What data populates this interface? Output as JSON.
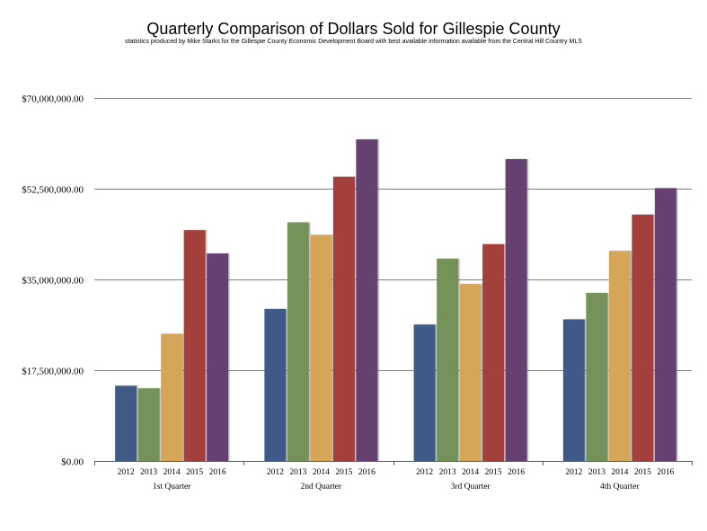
{
  "chart_data": {
    "type": "bar",
    "title": "Quarterly Comparison of Dollars Sold for Gillespie County",
    "subtitle": "statistics produced by Mike Starks for the Gillespie County Economic Development Board with best available information available from the Central Hill Country MLS",
    "categories": [
      "1st Quarter",
      "2nd Quarter",
      "3rd Quarter",
      "4th Quarter"
    ],
    "series_labels": [
      "2012",
      "2013",
      "2014",
      "2015",
      "2016"
    ],
    "series": [
      {
        "name": "2012",
        "color": "#3f5a87",
        "values": [
          14500000,
          29300000,
          26300000,
          27300000
        ]
      },
      {
        "name": "2013",
        "color": "#74925a",
        "values": [
          14000000,
          46000000,
          39000000,
          32400000
        ]
      },
      {
        "name": "2014",
        "color": "#d5a559",
        "values": [
          24500000,
          43600000,
          34100000,
          40500000
        ]
      },
      {
        "name": "2015",
        "color": "#a3403b",
        "values": [
          44500000,
          54800000,
          41800000,
          47500000
        ]
      },
      {
        "name": "2016",
        "color": "#65406f",
        "values": [
          40000000,
          62000000,
          58200000,
          52600000
        ]
      }
    ],
    "ylim": [
      0,
      70000000
    ],
    "yticks": [
      0,
      17500000,
      35000000,
      52500000,
      70000000
    ],
    "ytick_labels": [
      "$0.00",
      "$17,500,000.00",
      "$35,000,000.00",
      "$52,500,000.00",
      "$70,000,000.00"
    ],
    "grid": true,
    "legend": "none"
  }
}
